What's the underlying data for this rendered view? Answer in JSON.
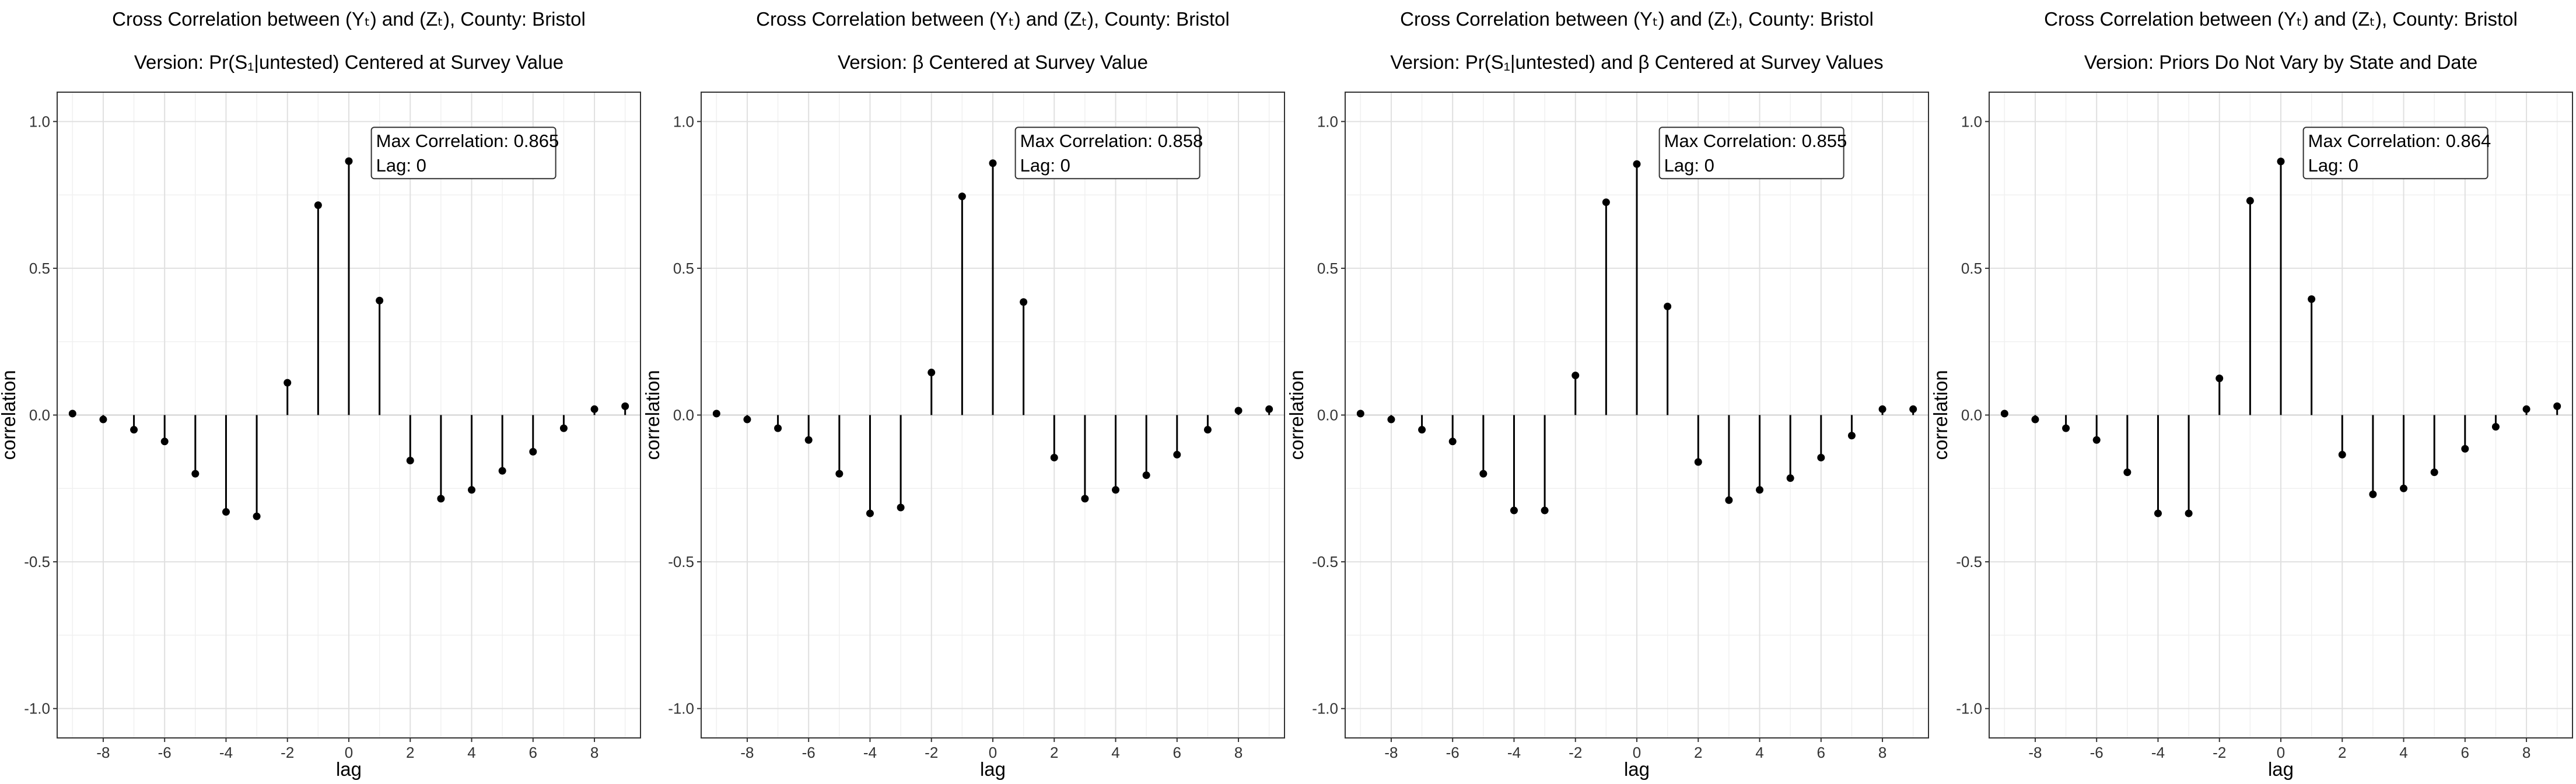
{
  "chart_data": [
    {
      "type": "stem",
      "title": "Cross Correlation between (Yₜ) and (Zₜ), County: Bristol",
      "subtitle": "Version: Pr(S₁|untested) Centered at Survey Value",
      "xlabel": "lag",
      "ylabel": "correlation",
      "xlim": [
        -9.5,
        9.5
      ],
      "ylim": [
        -1.1,
        1.1
      ],
      "x_ticks": [
        "-8",
        "-6",
        "-4",
        "-2",
        "0",
        "2",
        "4",
        "6",
        "8"
      ],
      "y_ticks": [
        "-1.0",
        "-0.5",
        "0.0",
        "0.5",
        "1.0"
      ],
      "grid": true,
      "x": [
        -9,
        -8,
        -7,
        -6,
        -5,
        -4,
        -3,
        -2,
        -1,
        0,
        1,
        2,
        3,
        4,
        5,
        6,
        7,
        8,
        9
      ],
      "values": [
        0.005,
        -0.015,
        -0.05,
        -0.09,
        -0.2,
        -0.33,
        -0.345,
        0.11,
        0.715,
        0.865,
        0.39,
        -0.155,
        -0.285,
        -0.255,
        -0.19,
        -0.125,
        -0.045,
        0.02,
        0.03
      ],
      "annotation": {
        "line1": "Max Correlation: 0.865",
        "line2": "Lag: 0"
      }
    },
    {
      "type": "stem",
      "title": "Cross Correlation between (Yₜ) and (Zₜ), County: Bristol",
      "subtitle": "Version: β Centered at Survey Value",
      "xlabel": "lag",
      "ylabel": "correlation",
      "xlim": [
        -9.5,
        9.5
      ],
      "ylim": [
        -1.1,
        1.1
      ],
      "x_ticks": [
        "-8",
        "-6",
        "-4",
        "-2",
        "0",
        "2",
        "4",
        "6",
        "8"
      ],
      "y_ticks": [
        "-1.0",
        "-0.5",
        "0.0",
        "0.5",
        "1.0"
      ],
      "grid": true,
      "x": [
        -9,
        -8,
        -7,
        -6,
        -5,
        -4,
        -3,
        -2,
        -1,
        0,
        1,
        2,
        3,
        4,
        5,
        6,
        7,
        8,
        9
      ],
      "values": [
        0.005,
        -0.015,
        -0.045,
        -0.085,
        -0.2,
        -0.335,
        -0.315,
        0.145,
        0.745,
        0.858,
        0.385,
        -0.145,
        -0.285,
        -0.255,
        -0.205,
        -0.135,
        -0.05,
        0.015,
        0.02
      ],
      "annotation": {
        "line1": "Max Correlation: 0.858",
        "line2": "Lag: 0"
      }
    },
    {
      "type": "stem",
      "title": "Cross Correlation between (Yₜ) and (Zₜ), County: Bristol",
      "subtitle": "Version: Pr(S₁|untested) and β Centered at Survey Values",
      "xlabel": "lag",
      "ylabel": "correlation",
      "xlim": [
        -9.5,
        9.5
      ],
      "ylim": [
        -1.1,
        1.1
      ],
      "x_ticks": [
        "-8",
        "-6",
        "-4",
        "-2",
        "0",
        "2",
        "4",
        "6",
        "8"
      ],
      "y_ticks": [
        "-1.0",
        "-0.5",
        "0.0",
        "0.5",
        "1.0"
      ],
      "grid": true,
      "x": [
        -9,
        -8,
        -7,
        -6,
        -5,
        -4,
        -3,
        -2,
        -1,
        0,
        1,
        2,
        3,
        4,
        5,
        6,
        7,
        8,
        9
      ],
      "values": [
        0.005,
        -0.015,
        -0.05,
        -0.09,
        -0.2,
        -0.325,
        -0.325,
        0.135,
        0.725,
        0.855,
        0.37,
        -0.16,
        -0.29,
        -0.255,
        -0.215,
        -0.145,
        -0.07,
        0.02,
        0.02
      ],
      "annotation": {
        "line1": "Max Correlation: 0.855",
        "line2": "Lag: 0"
      }
    },
    {
      "type": "stem",
      "title": "Cross Correlation between (Yₜ) and (Zₜ), County: Bristol",
      "subtitle": "Version: Priors Do Not Vary by State and Date",
      "xlabel": "lag",
      "ylabel": "correlation",
      "xlim": [
        -9.5,
        9.5
      ],
      "ylim": [
        -1.1,
        1.1
      ],
      "x_ticks": [
        "-8",
        "-6",
        "-4",
        "-2",
        "0",
        "2",
        "4",
        "6",
        "8"
      ],
      "y_ticks": [
        "-1.0",
        "-0.5",
        "0.0",
        "0.5",
        "1.0"
      ],
      "grid": true,
      "x": [
        -9,
        -8,
        -7,
        -6,
        -5,
        -4,
        -3,
        -2,
        -1,
        0,
        1,
        2,
        3,
        4,
        5,
        6,
        7,
        8,
        9
      ],
      "values": [
        0.005,
        -0.015,
        -0.045,
        -0.085,
        -0.195,
        -0.335,
        -0.335,
        0.125,
        0.73,
        0.864,
        0.395,
        -0.135,
        -0.27,
        -0.25,
        -0.195,
        -0.115,
        -0.04,
        0.02,
        0.03
      ],
      "annotation": {
        "line1": "Max Correlation: 0.864",
        "line2": "Lag: 0"
      }
    }
  ],
  "colors": {
    "panel_background": "#ffffff",
    "grid_major": "#e0e0e0",
    "grid_minor": "#f0f0f0",
    "panel_border": "#333333",
    "points": "#000000",
    "stems": "#000000",
    "zero_line": "#d9d9d9"
  }
}
